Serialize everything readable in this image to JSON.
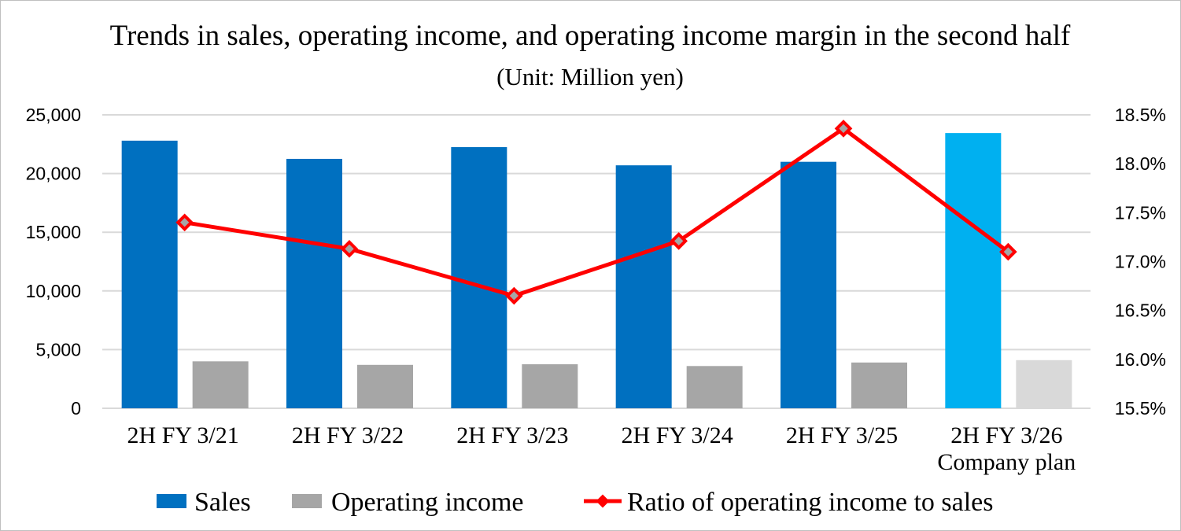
{
  "chart_data": {
    "type": "bar+line",
    "title": "Trends in sales, operating income, and operating income margin in the second half",
    "subtitle": "(Unit: Million yen)",
    "categories": [
      [
        "2H FY 3/21"
      ],
      [
        "2H FY 3/22"
      ],
      [
        "2H FY 3/23"
      ],
      [
        "2H FY 3/24"
      ],
      [
        "2H FY 3/25"
      ],
      [
        "2H FY 3/26",
        "Company plan"
      ]
    ],
    "series": [
      {
        "name": "Sales",
        "type": "bar",
        "axis": "left",
        "color": "#0070C0",
        "plan_color": "#00B0F0",
        "values": [
          22800,
          21250,
          22250,
          20700,
          21000,
          23450
        ]
      },
      {
        "name": "Operating income",
        "type": "bar",
        "axis": "left",
        "color": "#A6A6A6",
        "plan_color": "#D9D9D9",
        "values": [
          4000,
          3700,
          3750,
          3600,
          3900,
          4100
        ]
      },
      {
        "name": "Ratio of operating income to sales",
        "type": "line",
        "axis": "right",
        "color": "#FF0000",
        "values": [
          17.4,
          17.13,
          16.65,
          17.21,
          18.36,
          17.1
        ]
      }
    ],
    "y_left": {
      "range": [
        0,
        25000
      ],
      "ticks": [
        "0",
        "5,000",
        "10,000",
        "15,000",
        "20,000",
        "25,000"
      ]
    },
    "y_right": {
      "range": [
        15.5,
        18.5
      ],
      "ticks": [
        "15.5%",
        "16.0%",
        "16.5%",
        "17.0%",
        "17.5%",
        "18.0%",
        "18.5%"
      ]
    },
    "grid": true,
    "legend_position": "bottom"
  }
}
